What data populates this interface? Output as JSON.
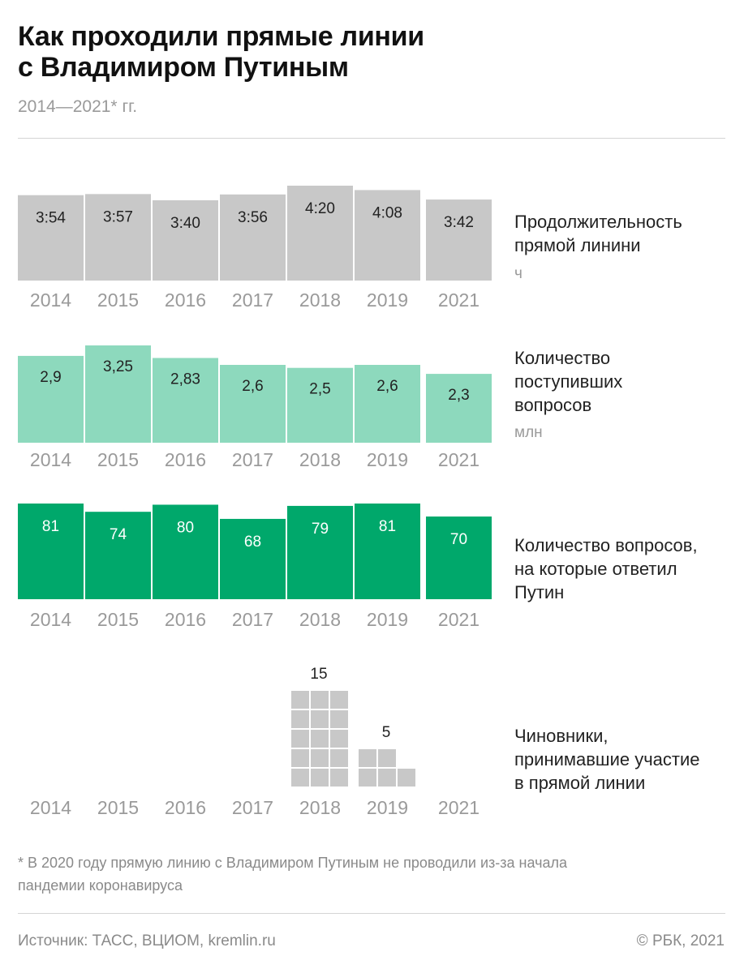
{
  "header": {
    "title_line1": "Как проходили прямые линии",
    "title_line2": "с Владимиром Путиным",
    "subtitle": "2014—2021* гг."
  },
  "colors": {
    "duration": "#c8c8c8",
    "questions_received": "#8dd9bd",
    "questions_answered": "#00a86b",
    "officials": "#c8c8c8",
    "year_label": "#9a9a9a"
  },
  "chart_data": [
    {
      "type": "bar",
      "label_lines": [
        "Продолжительность",
        "прямой линини"
      ],
      "unit": "ч",
      "categories": [
        "2014",
        "2015",
        "2016",
        "2017",
        "2018",
        "2019",
        "2021"
      ],
      "values": [
        3.9,
        3.95,
        3.667,
        3.933,
        4.333,
        4.133,
        3.7
      ],
      "data_labels": [
        "3:54",
        "3:57",
        "3:40",
        "3:56",
        "4:20",
        "4:08",
        "3:42"
      ],
      "ylim": [
        0,
        4.333
      ]
    },
    {
      "type": "bar",
      "label_lines": [
        "Количество",
        "поступивших",
        "вопросов"
      ],
      "unit": "млн",
      "categories": [
        "2014",
        "2015",
        "2016",
        "2017",
        "2018",
        "2019",
        "2021"
      ],
      "values": [
        2.9,
        3.25,
        2.83,
        2.6,
        2.5,
        2.6,
        2.3
      ],
      "data_labels": [
        "2,9",
        "3,25",
        "2,83",
        "2,6",
        "2,5",
        "2,6",
        "2,3"
      ],
      "ylim": [
        0,
        3.25
      ]
    },
    {
      "type": "bar",
      "label_lines": [
        "Количество вопросов,",
        "на которые ответил",
        "Путин"
      ],
      "unit": "",
      "categories": [
        "2014",
        "2015",
        "2016",
        "2017",
        "2018",
        "2019",
        "2021"
      ],
      "values": [
        81,
        74,
        80,
        68,
        79,
        81,
        70
      ],
      "data_labels": [
        "81",
        "74",
        "80",
        "68",
        "79",
        "81",
        "70"
      ],
      "ylim": [
        0,
        81
      ]
    },
    {
      "type": "unit_grid",
      "label_lines": [
        "Чиновники,",
        "принимавшие участие",
        "в прямой линии"
      ],
      "unit": "",
      "categories": [
        "2014",
        "2015",
        "2016",
        "2017",
        "2018",
        "2019",
        "2021"
      ],
      "values": [
        0,
        0,
        0,
        0,
        15,
        5,
        0
      ],
      "data_labels": [
        "",
        "",
        "",
        "",
        "15",
        "5",
        ""
      ]
    }
  ],
  "footnote_line1": "* В 2020 году прямую линию с Владимиром Путиным не проводили из-за начала",
  "footnote_line2": "пандемии коронавируса",
  "source": "Источник: ТАСС, ВЦИОМ, kremlin.ru",
  "copyright": "© РБК, 2021"
}
